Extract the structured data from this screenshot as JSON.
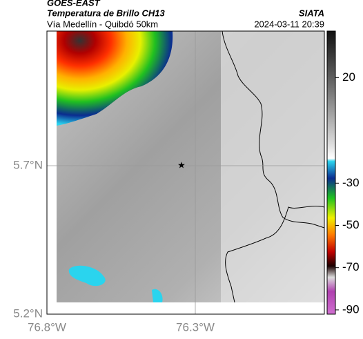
{
  "header": {
    "title": "GOES-EAST",
    "subtitle": "Temperatura de Brillo CH13",
    "route": "Vía Medellín - Quibdó 50km",
    "source": "SIATA",
    "timestamp": "2024-03-11 20:39"
  },
  "map": {
    "lat_labels": [
      "5.7°N",
      "5.2°N"
    ],
    "lon_labels": [
      "76.8°W",
      "76.3°W"
    ]
  },
  "colorbar": {
    "lim": [
      42,
      -92
    ],
    "ticks": [
      20,
      -30,
      -50,
      -70,
      -90
    ]
  }
}
